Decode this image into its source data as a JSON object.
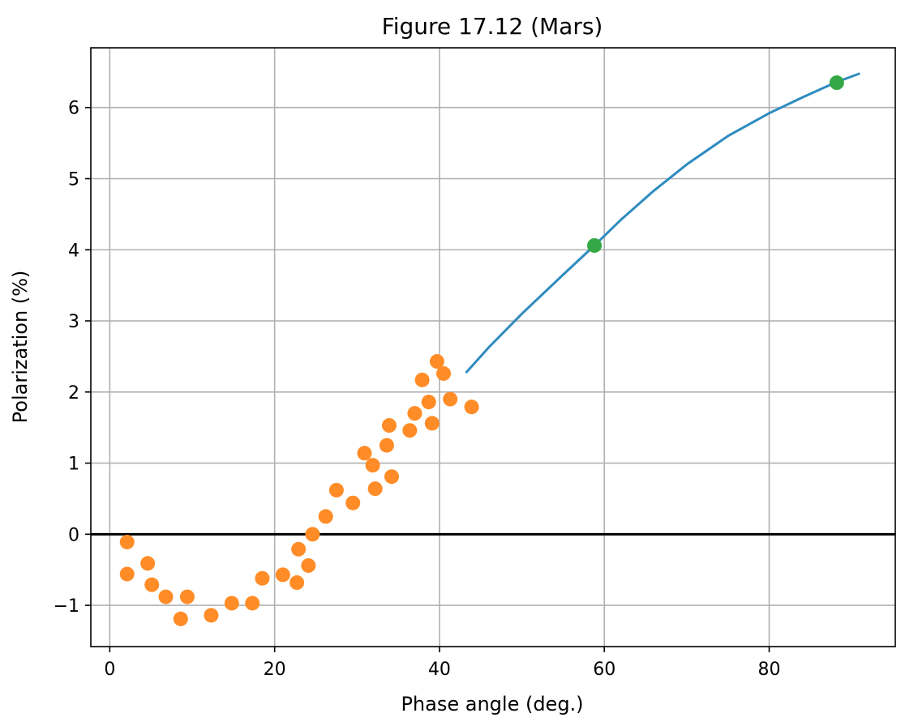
{
  "chart_data": {
    "type": "scatter",
    "title": "Figure 17.12 (Mars)",
    "xlabel": "Phase angle (deg.)",
    "ylabel": "Polarization (%)",
    "xlim": [
      -2.3,
      95.3
    ],
    "ylim": [
      -1.58,
      6.84
    ],
    "xticks": [
      0,
      20,
      40,
      60,
      80
    ],
    "xtick_labels": [
      "0",
      "20",
      "40",
      "60",
      "80"
    ],
    "yticks": [
      -1,
      0,
      1,
      2,
      3,
      4,
      5,
      6
    ],
    "ytick_labels": [
      "−1",
      "0",
      "1",
      "2",
      "3",
      "4",
      "5",
      "6"
    ],
    "grid": true,
    "legend": "none",
    "reference_line": {
      "y": 0,
      "color": "#000000"
    },
    "series": [
      {
        "kind": "scatter",
        "color": "#ff8c26",
        "points": [
          [
            2.1,
            -0.11
          ],
          [
            2.1,
            -0.56
          ],
          [
            4.6,
            -0.41
          ],
          [
            5.1,
            -0.71
          ],
          [
            6.8,
            -0.88
          ],
          [
            8.6,
            -1.19
          ],
          [
            9.4,
            -0.88
          ],
          [
            12.3,
            -1.14
          ],
          [
            14.8,
            -0.97
          ],
          [
            17.3,
            -0.97
          ],
          [
            18.5,
            -0.62
          ],
          [
            21.0,
            -0.57
          ],
          [
            22.7,
            -0.68
          ],
          [
            22.9,
            -0.21
          ],
          [
            24.1,
            -0.44
          ],
          [
            24.6,
            0.0
          ],
          [
            26.2,
            0.25
          ],
          [
            27.5,
            0.62
          ],
          [
            29.5,
            0.44
          ],
          [
            30.9,
            1.14
          ],
          [
            31.9,
            0.97
          ],
          [
            32.2,
            0.64
          ],
          [
            33.6,
            1.25
          ],
          [
            33.9,
            1.53
          ],
          [
            34.2,
            0.81
          ],
          [
            36.4,
            1.46
          ],
          [
            37.0,
            1.7
          ],
          [
            37.9,
            2.17
          ],
          [
            38.7,
            1.86
          ],
          [
            39.1,
            1.56
          ],
          [
            39.7,
            2.43
          ],
          [
            40.5,
            2.26
          ],
          [
            41.3,
            1.9
          ],
          [
            43.9,
            1.79
          ]
        ]
      },
      {
        "kind": "line",
        "color": "#2e8bc0",
        "points": [
          [
            43.2,
            2.27
          ],
          [
            46,
            2.63
          ],
          [
            50,
            3.1
          ],
          [
            55,
            3.65
          ],
          [
            58.8,
            4.06
          ],
          [
            62,
            4.42
          ],
          [
            66,
            4.83
          ],
          [
            70,
            5.2
          ],
          [
            75,
            5.6
          ],
          [
            80,
            5.92
          ],
          [
            84,
            6.14
          ],
          [
            88,
            6.35
          ],
          [
            91,
            6.48
          ]
        ]
      },
      {
        "kind": "scatter",
        "color": "#34a845",
        "points": [
          [
            58.8,
            4.06
          ],
          [
            88.2,
            6.35
          ]
        ]
      }
    ]
  }
}
